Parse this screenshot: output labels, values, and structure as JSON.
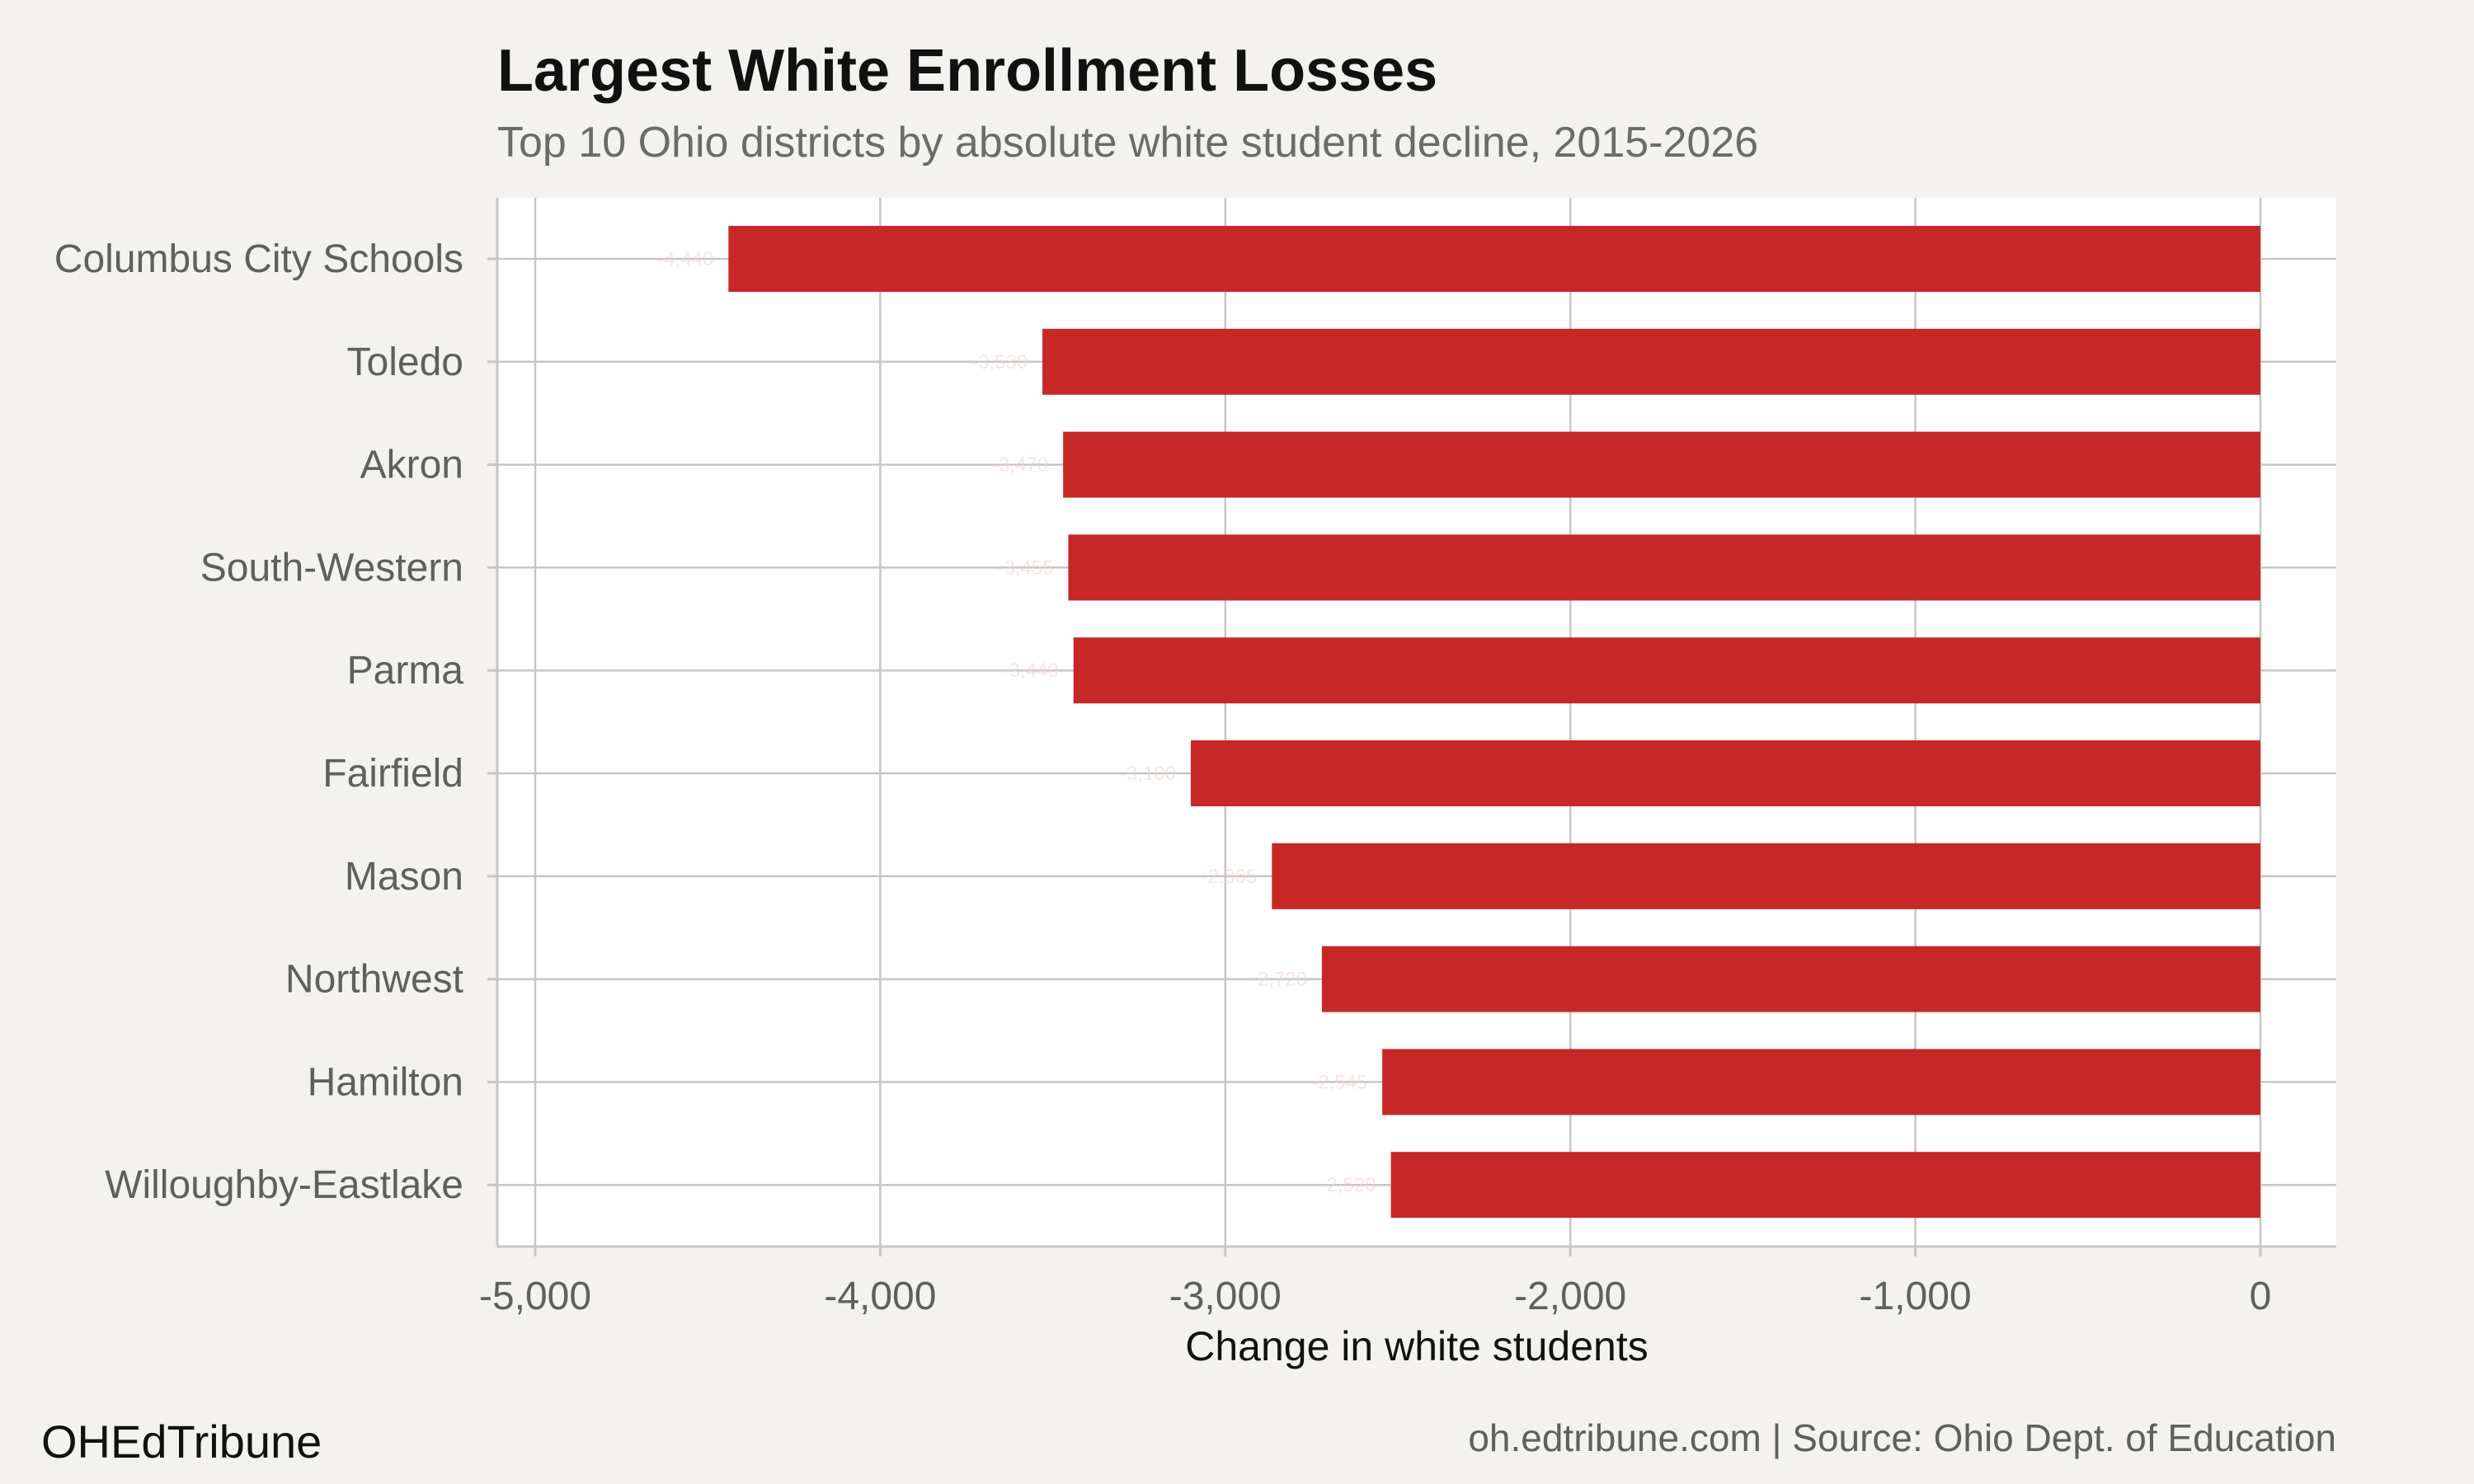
{
  "chart_data": {
    "type": "bar",
    "orientation": "horizontal",
    "title": "Largest White Enrollment Losses",
    "subtitle": "Top 10 Ohio districts by absolute white student decline, 2015-2026",
    "categories": [
      "Columbus City Schools",
      "Toledo",
      "Akron",
      "South-Western",
      "Parma",
      "Fairfield",
      "Mason",
      "Northwest",
      "Hamilton",
      "Willoughby-Eastlake"
    ],
    "values": [
      -4440,
      -3530,
      -3470,
      -3455,
      -3440,
      -3100,
      -2865,
      -2720,
      -2545,
      -2520
    ],
    "data_labels": [
      "-4,440",
      "-3,530",
      "-3,470",
      "-3,455",
      "-3,440",
      "-3,100",
      "-2,865",
      "-2,720",
      "-2,545",
      "-2,520"
    ],
    "xlabel": "Change in white students",
    "ylabel": "",
    "xlim": [
      -5110,
      220
    ],
    "x_ticks": [
      -5000,
      -4000,
      -3000,
      -2000,
      -1000,
      0
    ],
    "x_tick_labels": [
      "-5,000",
      "-4,000",
      "-3,000",
      "-2,000",
      "-1,000",
      "0"
    ],
    "grid": true,
    "legend": "none",
    "bar_color": "#c62828"
  },
  "footer": {
    "brand": "OHEdTribune",
    "caption": "oh.edtribune.com | Source: Ohio Dept. of Education"
  },
  "colors": {
    "background": "#f4f2ee",
    "panel": "#ffffff",
    "grid": "#c8c6c2",
    "bar": "#c62828"
  }
}
